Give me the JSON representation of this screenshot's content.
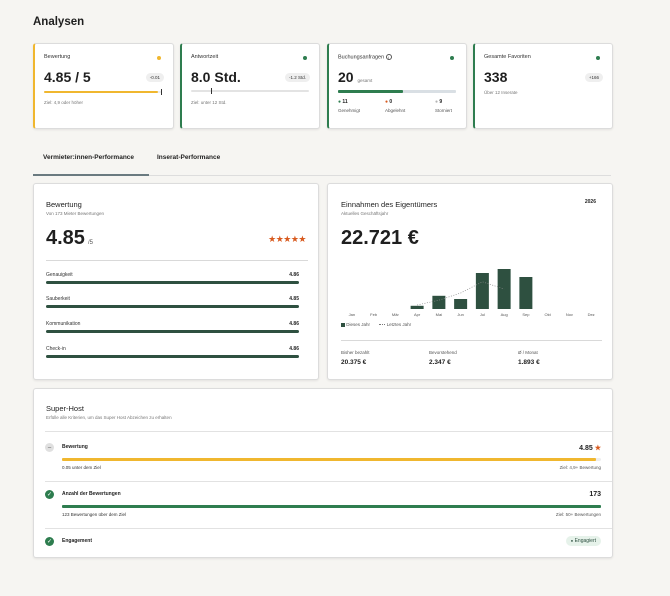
{
  "page": {
    "title": "Analysen"
  },
  "colors": {
    "green": "#2e7d4f",
    "dark_green": "#2e5040",
    "yellow": "#f0b72f",
    "orange": "#d85a1e",
    "grey": "#b3b3b3"
  },
  "kpis": [
    {
      "label": "Bewertung",
      "value": "4.85 / 5",
      "delta": "-0.01",
      "sub": "Ziel: 4,9 oder höher",
      "progress": 0.97,
      "dot": "#f0b72f",
      "accent": "#f0b72f"
    },
    {
      "label": "Antwortzeit",
      "value": "8.0 Std.",
      "delta": "-1.2 Std.",
      "sub": "Ziel: unter 12 Std.",
      "progress": 0.2,
      "dot": "#2e7d4f",
      "accent": "#2e7d4f"
    },
    {
      "label": "Buchungsanfragen",
      "info_icon": "info-icon",
      "value": "20",
      "value_suffix": "gesamt",
      "progress": 0.55,
      "dot": "#2e7d4f",
      "accent": "#2e7d4f",
      "breakdown": [
        {
          "count": "11",
          "label": "Genehmigt",
          "color": "#2e7d4f"
        },
        {
          "count": "0",
          "label": "Abgelehnt",
          "color": "#d85a1e"
        },
        {
          "count": "9",
          "label": "Storniert",
          "color": "#b3b3b3"
        }
      ]
    },
    {
      "label": "Gesamte Favoriten",
      "value": "338",
      "delta": "+166",
      "sub": "Über 12 Inserate",
      "dot": "#2e7d4f",
      "accent": "#2e7d4f"
    }
  ],
  "tabs": [
    {
      "label": "Vermieter:innen-Performance",
      "active": true
    },
    {
      "label": "Inserat-Performance",
      "active": false
    }
  ],
  "rating_card": {
    "title": "Bewertung",
    "subtitle": "Von 173 Mieter Bewertungen",
    "value": "4.85",
    "suffix": "/5",
    "stars": "★★★★★",
    "metrics": [
      {
        "name": "Genauigkeit",
        "value": "4.86"
      },
      {
        "name": "Sauberkeit",
        "value": "4.85"
      },
      {
        "name": "Kommunikation",
        "value": "4.86"
      },
      {
        "name": "Check-in",
        "value": "4.86"
      }
    ]
  },
  "revenue_card": {
    "title": "Einnahmen des Eigentümers",
    "subtitle": "Aktuelles Geschäftsjahr",
    "year": "2026",
    "value": "22.721 €",
    "legend": [
      "Dieses Jahr",
      "Letztes Jahr"
    ],
    "stats": [
      {
        "label": "Bisher bezahlt",
        "value": "20.375 €"
      },
      {
        "label": "Bevorstehend",
        "value": "2.347 €"
      },
      {
        "label": "Ø / Monat",
        "value": "1.893 €"
      }
    ]
  },
  "chart_data": {
    "type": "bar",
    "categories": [
      "Jan",
      "Feb",
      "Mär",
      "Apr",
      "Mai",
      "Jun",
      "Jul",
      "Aug",
      "Sep",
      "Okt",
      "Nov",
      "Dez"
    ],
    "series": [
      {
        "name": "Dieses Jahr",
        "values": [
          0,
          0,
          0,
          0.08,
          0.33,
          0.25,
          0.9,
          1.0,
          0.8,
          0,
          0,
          0
        ]
      },
      {
        "name": "Letztes Jahr",
        "style": "dotted-line",
        "values": [
          null,
          null,
          null,
          0.1,
          0.22,
          0.4,
          0.68,
          0.5,
          null,
          null,
          null,
          null
        ]
      }
    ],
    "ylim": [
      0,
      1
    ],
    "grid": false,
    "legend_position": "bottom-left"
  },
  "superhost": {
    "title": "Super-Host",
    "subtitle": "Erfülle alle Kriterien, um das Super Host Abzeichen zu erhalten",
    "criteria": [
      {
        "title": "Bewertung",
        "value": "4.85",
        "icon": "minus-icon",
        "left": "0.05 unter dem Ziel",
        "right": "Ziel: 4,9+ Bewertung",
        "progress": 0.99,
        "color": "#f0b72f"
      },
      {
        "title": "Anzahl der Bewertungen",
        "value": "173",
        "icon": "check-icon",
        "left": "123 Bewertungen über dem Ziel",
        "right": "Ziel: 50+ Bewertungen",
        "progress": 1.0,
        "color": "#2e7d4f"
      },
      {
        "title": "Engagement",
        "icon": "check-icon",
        "badge": "Engagiert"
      }
    ]
  }
}
